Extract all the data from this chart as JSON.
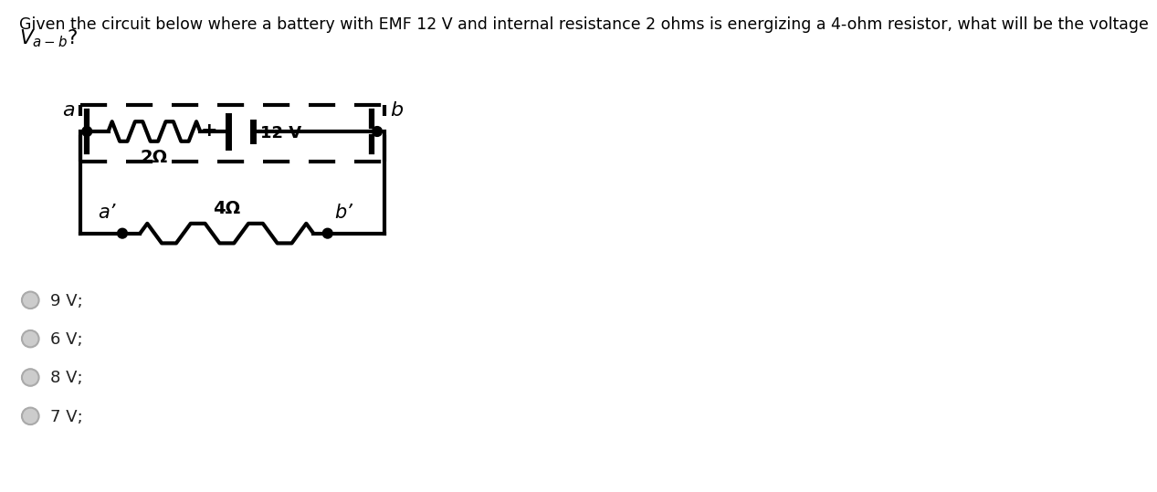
{
  "bg_color": "#ffffff",
  "circuit_color": "#000000",
  "answer_options": [
    "9 V;",
    "6 V;",
    "8 V;",
    "7 V;"
  ],
  "radio_color": "#cccccc",
  "radio_border_color": "#aaaaaa",
  "font_size_title": 12.5,
  "font_size_labels": 14,
  "font_size_options": 13,
  "title_line1": "Given the circuit below where a battery with EMF 12 V and internal resistance 2 ohms is energizing a 4-ohm resistor, what will be the voltage",
  "title_line2": "$V_{a-b}$?",
  "label_2ohm": "2Ω",
  "label_4ohm": "4Ω",
  "label_12v": "12 V",
  "label_plus": "+",
  "label_a": "a",
  "label_b": "b",
  "label_ap": "a’",
  "label_bp": "b’"
}
